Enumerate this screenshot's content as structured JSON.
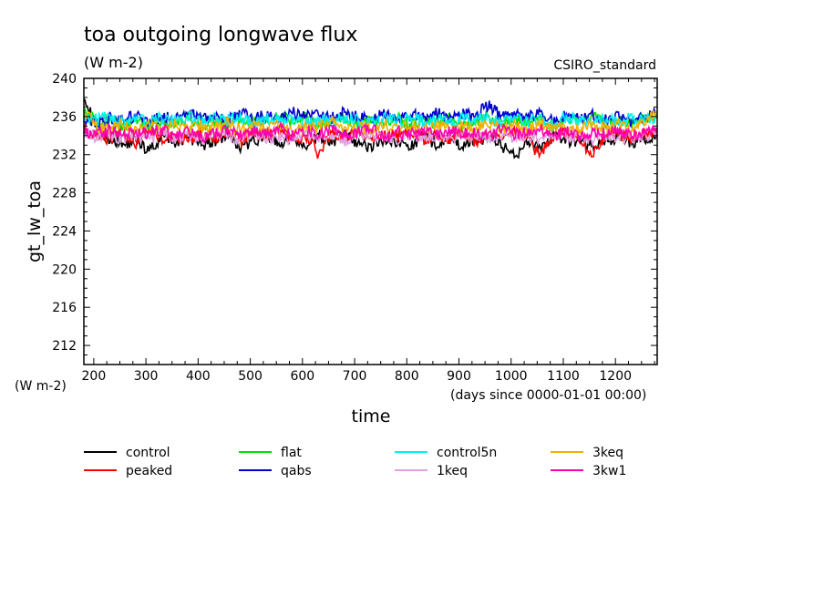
{
  "chart_data": {
    "type": "line",
    "title": "toa outgoing longwave flux",
    "units": "(W m-2)",
    "dataset": "CSIRO_standard",
    "ylabel": "gt_lw_toa",
    "yunits": "(W m-2)",
    "xlabel": "time",
    "xunits": "(days since 0000-01-01 00:00)",
    "xlim": [
      181,
      1280
    ],
    "ylim": [
      210,
      240
    ],
    "xticks": [
      200,
      300,
      400,
      500,
      600,
      700,
      800,
      900,
      1000,
      1100,
      1200
    ],
    "yticks": [
      212,
      216,
      220,
      224,
      228,
      232,
      236,
      240
    ],
    "grid": false,
    "legend_position": "bottom",
    "series_x": [
      181,
      206,
      231,
      256,
      281,
      306,
      331,
      356,
      381,
      406,
      431,
      456,
      481,
      506,
      531,
      556,
      581,
      606,
      631,
      656,
      681,
      706,
      731,
      756,
      781,
      806,
      831,
      856,
      881,
      906,
      931,
      956,
      981,
      1006,
      1031,
      1056,
      1081,
      1106,
      1131,
      1156,
      1181,
      1206,
      1231,
      1256,
      1280
    ],
    "series": [
      {
        "name": "control",
        "color": "#000000",
        "values": [
          238.5,
          234.2,
          233.8,
          233.1,
          233.6,
          232.4,
          233.9,
          233.2,
          234.0,
          232.9,
          233.5,
          233.8,
          232.7,
          233.4,
          234.1,
          233.0,
          233.6,
          232.8,
          233.9,
          233.3,
          234.2,
          233.1,
          232.9,
          233.7,
          233.4,
          232.8,
          233.9,
          233.2,
          233.6,
          232.9,
          233.5,
          233.8,
          233.0,
          231.8,
          233.4,
          232.7,
          233.9,
          233.2,
          233.6,
          232.8,
          233.4,
          233.9,
          233.2,
          233.7,
          234.0
        ]
      },
      {
        "name": "peaked",
        "color": "#ff0000",
        "values": [
          234.6,
          234.1,
          233.6,
          234.4,
          233.2,
          234.5,
          233.8,
          234.0,
          233.5,
          234.3,
          233.7,
          234.6,
          233.4,
          234.2,
          233.9,
          234.5,
          233.6,
          234.1,
          232.0,
          234.3,
          233.8,
          234.6,
          233.5,
          234.2,
          233.9,
          234.4,
          233.6,
          234.1,
          233.7,
          234.5,
          233.4,
          234.2,
          233.9,
          234.3,
          233.6,
          231.8,
          234.0,
          234.4,
          233.5,
          232.0,
          233.8,
          234.1,
          233.6,
          234.3,
          234.5
        ]
      },
      {
        "name": "flat",
        "color": "#00e000",
        "values": [
          236.4,
          235.3,
          235.6,
          235.0,
          235.8,
          234.9,
          235.5,
          235.2,
          235.9,
          235.1,
          235.6,
          234.8,
          235.7,
          235.3,
          235.9,
          236.3,
          235.4,
          235.8,
          235.1,
          235.6,
          236.0,
          235.2,
          235.7,
          235.4,
          235.9,
          235.0,
          235.6,
          235.3,
          235.8,
          235.1,
          235.5,
          235.9,
          235.2,
          235.7,
          235.4,
          235.8,
          235.0,
          235.6,
          235.3,
          235.9,
          235.2,
          235.6,
          235.4,
          235.8,
          236.2
        ]
      },
      {
        "name": "qabs",
        "color": "#0000d0",
        "values": [
          235.8,
          235.4,
          235.9,
          235.6,
          236.1,
          235.5,
          236.0,
          235.7,
          236.3,
          235.8,
          236.2,
          235.6,
          236.4,
          235.9,
          236.1,
          235.7,
          236.5,
          236.0,
          236.2,
          235.8,
          236.4,
          236.1,
          235.9,
          236.3,
          235.7,
          236.2,
          236.0,
          236.4,
          235.8,
          236.3,
          236.1,
          237.2,
          236.0,
          236.4,
          235.9,
          236.3,
          235.6,
          236.1,
          235.8,
          236.2,
          235.7,
          236.0,
          235.5,
          235.9,
          236.3
        ]
      },
      {
        "name": "control5n",
        "color": "#00f0f0",
        "values": [
          235.9,
          235.6,
          236.0,
          235.4,
          235.8,
          235.3,
          235.9,
          235.5,
          236.0,
          235.4,
          235.8,
          235.6,
          236.1,
          235.3,
          235.9,
          235.5,
          235.8,
          235.2,
          235.7,
          235.4,
          235.9,
          235.6,
          235.3,
          235.8,
          235.5,
          236.0,
          235.4,
          235.7,
          235.3,
          235.9,
          235.6,
          235.8,
          235.4,
          236.0,
          235.5,
          235.7,
          235.3,
          235.9,
          235.6,
          235.4,
          235.8,
          235.5,
          235.9,
          235.6,
          235.8
        ]
      },
      {
        "name": "1keq",
        "color": "#e0a0e0",
        "values": [
          234.3,
          233.8,
          234.2,
          233.5,
          234.0,
          233.6,
          234.4,
          233.7,
          234.1,
          233.4,
          234.2,
          233.9,
          233.5,
          234.3,
          233.8,
          234.0,
          233.6,
          234.2,
          233.7,
          234.1,
          233.4,
          234.3,
          233.8,
          234.0,
          233.5,
          234.2,
          233.7,
          234.1,
          233.6,
          234.3,
          233.9,
          233.5,
          234.2,
          233.8,
          234.0,
          233.6,
          234.3,
          233.7,
          234.1,
          233.5,
          234.2,
          233.8,
          233.6,
          234.0,
          234.2
        ]
      },
      {
        "name": "3keq",
        "color": "#f0b000",
        "values": [
          236.6,
          235.0,
          234.6,
          235.2,
          234.5,
          235.0,
          234.7,
          235.3,
          234.6,
          235.1,
          234.8,
          235.4,
          234.5,
          235.0,
          234.7,
          235.2,
          234.6,
          235.1,
          234.9,
          235.4,
          234.7,
          235.0,
          234.6,
          235.3,
          234.8,
          235.1,
          234.5,
          235.2,
          234.7,
          235.0,
          234.6,
          235.3,
          234.8,
          235.1,
          234.5,
          235.2,
          234.9,
          235.0,
          234.6,
          235.3,
          234.7,
          235.1,
          234.8,
          235.2,
          236.6
        ]
      },
      {
        "name": "3kw1",
        "color": "#ff00b0",
        "values": [
          234.5,
          234.0,
          234.6,
          233.9,
          234.4,
          234.1,
          234.7,
          234.0,
          234.5,
          233.8,
          234.3,
          234.6,
          234.0,
          234.4,
          234.1,
          234.7,
          233.9,
          234.5,
          234.2,
          234.6,
          234.0,
          234.3,
          234.7,
          233.9,
          234.4,
          234.1,
          234.6,
          234.0,
          234.5,
          234.2,
          234.4,
          233.9,
          234.6,
          234.1,
          234.3,
          234.7,
          234.0,
          234.5,
          233.8,
          234.4,
          234.1,
          234.6,
          234.0,
          234.3,
          234.8
        ]
      }
    ]
  }
}
